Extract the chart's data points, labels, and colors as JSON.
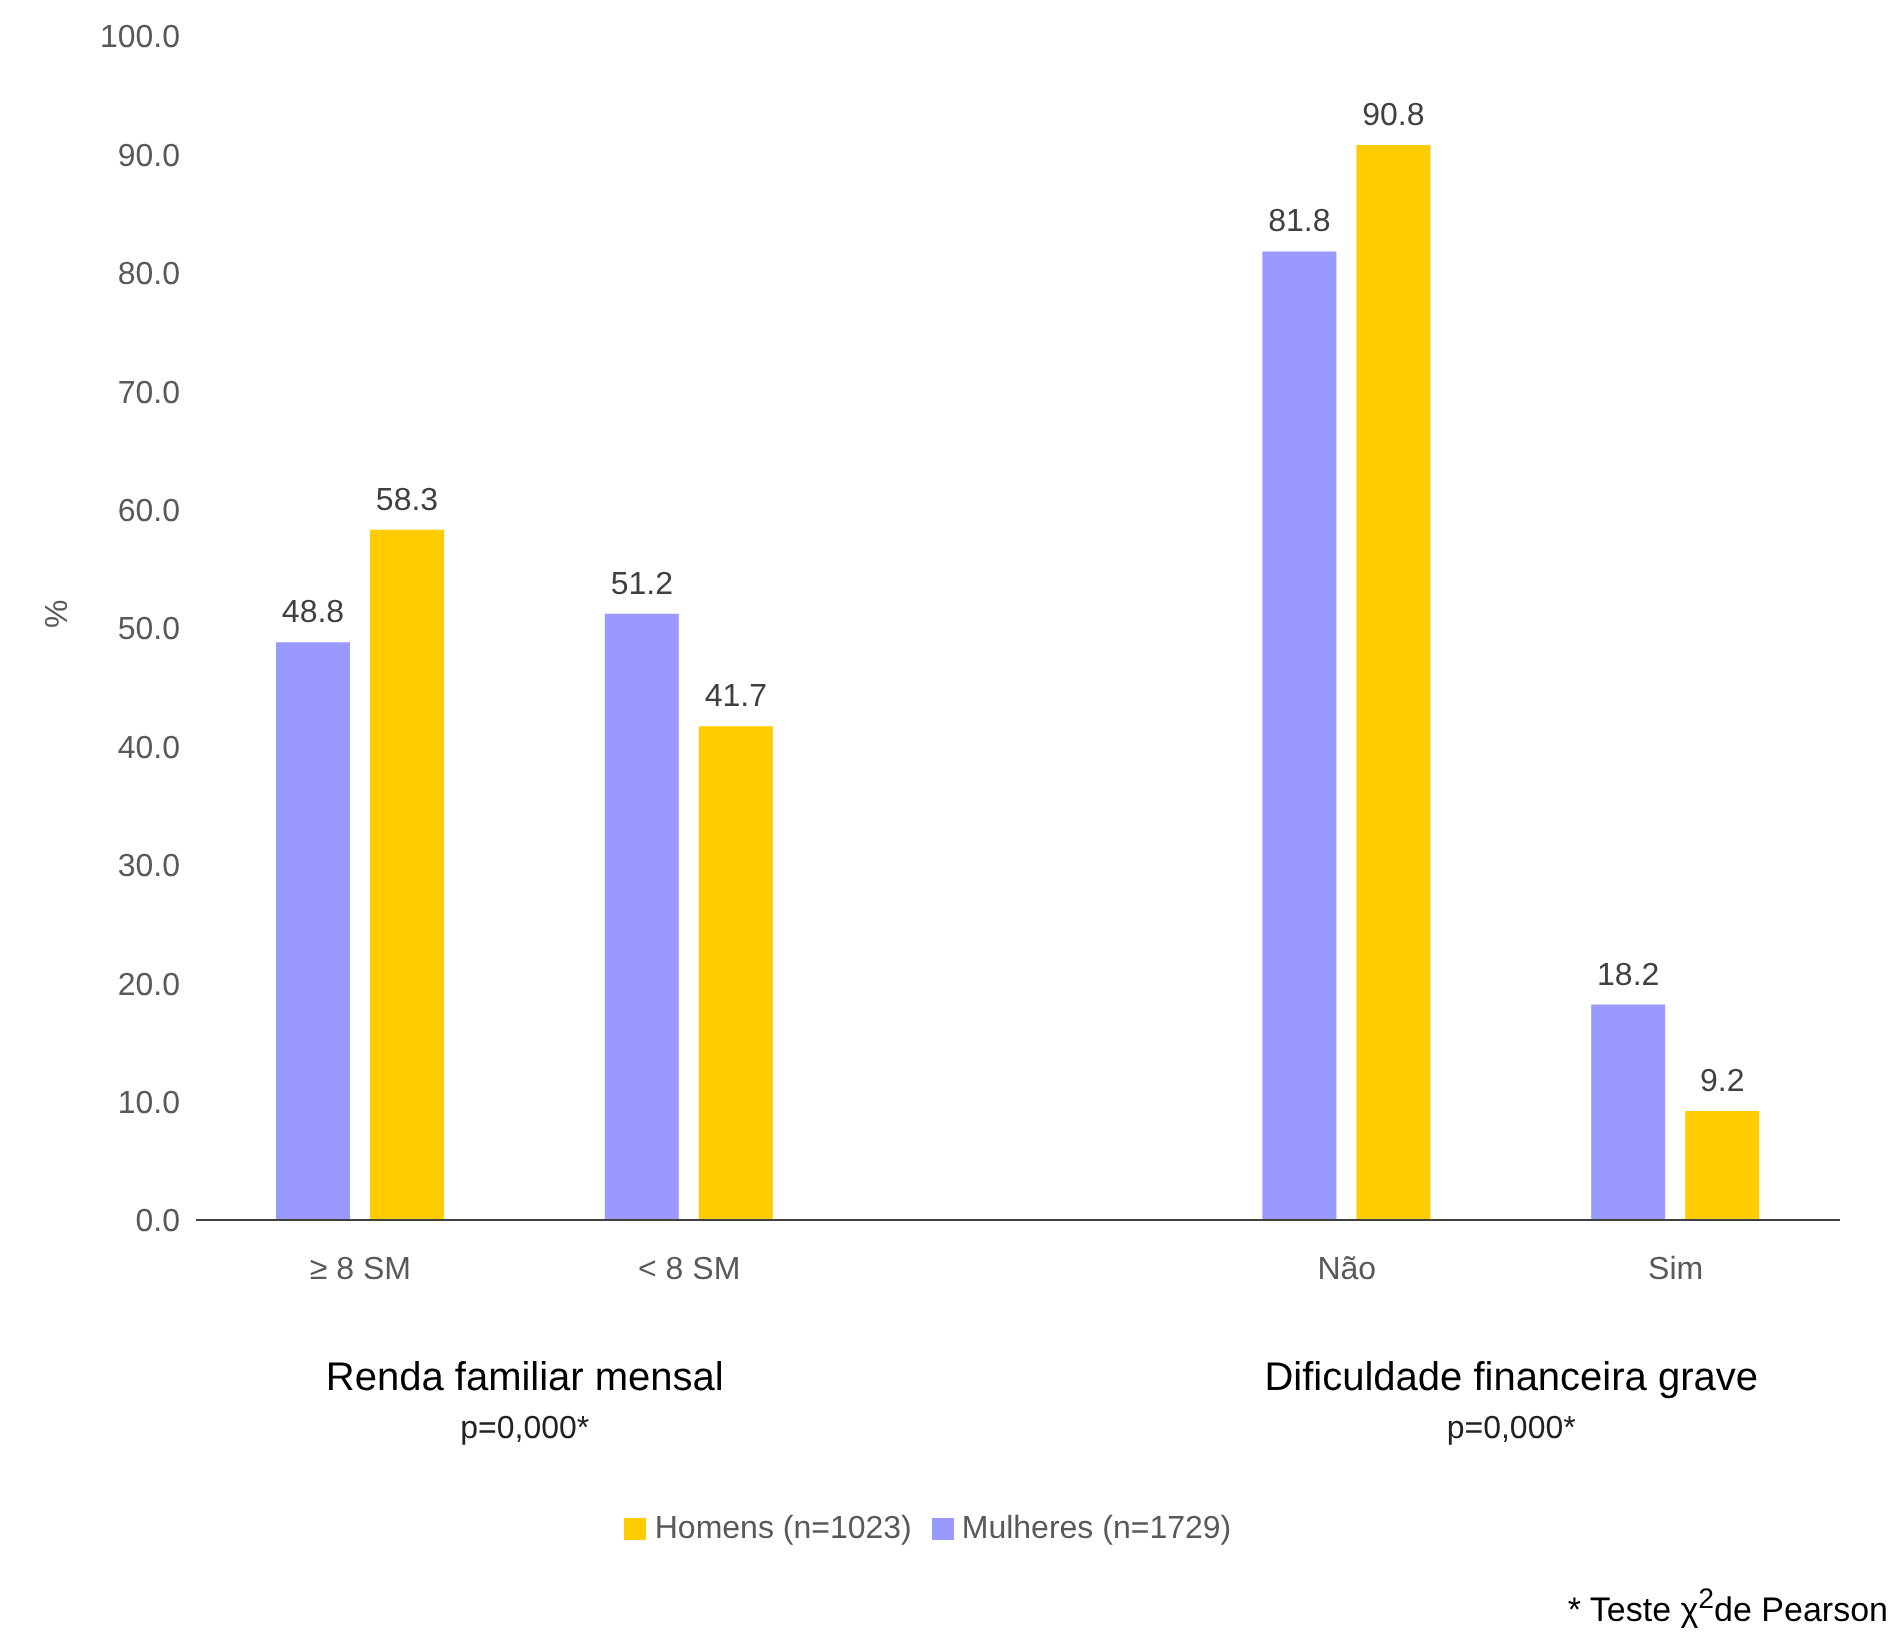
{
  "chart_data": {
    "type": "bar",
    "ylabel": "%",
    "categories": [
      "≥ 8 SM",
      "< 8 SM",
      null,
      "Não",
      "Sim"
    ],
    "series": [
      {
        "name": "Mulheres (n=1729)",
        "color": "#9999ff",
        "values": [
          48.8,
          51.2,
          null,
          81.8,
          18.2
        ]
      },
      {
        "name": "Homens (n=1023)",
        "color": "#ffcc00",
        "values": [
          58.3,
          41.7,
          null,
          90.8,
          9.2
        ]
      }
    ],
    "ylim": [
      0,
      100
    ],
    "yticks": [
      {
        "value": 0,
        "label": "0.0"
      },
      {
        "value": 10,
        "label": "10.0"
      },
      {
        "value": 20,
        "label": "20.0"
      },
      {
        "value": 30,
        "label": "30.0"
      },
      {
        "value": 40,
        "label": "40.0"
      },
      {
        "value": 50,
        "label": "50.0"
      },
      {
        "value": 60,
        "label": "60.0"
      },
      {
        "value": 70,
        "label": "70.0"
      },
      {
        "value": 80,
        "label": "80.0"
      },
      {
        "value": 90,
        "label": "90.0"
      },
      {
        "value": 100,
        "label": "100.0"
      }
    ],
    "data_labels": true,
    "grid": false,
    "legend": "bottom",
    "annotations": [
      "Renda familiar mensal",
      "p=0,000*",
      "Dificuldade financeira grave",
      "p=0,000*",
      "* Teste χ$^{2}$de Pearson"
    ]
  }
}
